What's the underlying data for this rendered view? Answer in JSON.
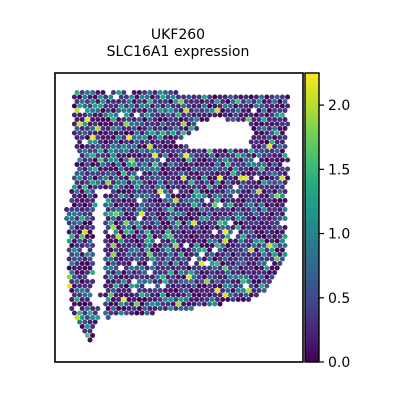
{
  "title": {
    "line1": "UKF260",
    "line2": "SLC16A1 expression"
  },
  "chart_data": {
    "type": "scatter",
    "plot_kind": "spatial spot expression map",
    "color_metric": "SLC16A1 expression",
    "colormap": "viridis",
    "colorbar": {
      "range": [
        0.0,
        2.25
      ],
      "ticks": [
        0.0,
        0.5,
        1.0,
        1.5,
        2.0
      ],
      "tick_labels": [
        "0.0",
        "0.5",
        "1.0",
        "1.5",
        "2.0"
      ],
      "placement": "right"
    },
    "axes_visible": false,
    "grid": false,
    "colors": {
      "low": "#440154",
      "mid": "#21918c",
      "high": "#fde725"
    },
    "seed": 260
  }
}
